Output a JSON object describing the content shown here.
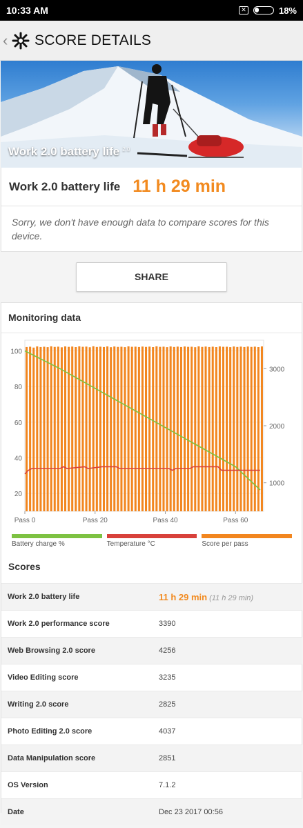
{
  "status_bar": {
    "time": "10:33 AM",
    "battery": "18%"
  },
  "app_bar": {
    "back_glyph": "‹",
    "title": "SCORE DETAILS"
  },
  "hero": {
    "caption": "Work 2.0 battery life",
    "version": "2.0"
  },
  "result": {
    "label": "Work 2.0 battery life",
    "value": "11 h 29 min"
  },
  "note": "Sorry, we don't have enough data to compare scores for this device.",
  "share_label": "SHARE",
  "monitoring": {
    "title": "Monitoring data",
    "legend": [
      {
        "label": "Battery charge %",
        "color": "#7dc242"
      },
      {
        "label": "Temperature °C",
        "color": "#d8413b"
      },
      {
        "label": "Score per pass",
        "color": "#f2861f"
      }
    ]
  },
  "chart_data": {
    "type": "bar",
    "x_ticks": [
      "Pass 0",
      "Pass 20",
      "Pass 40",
      "Pass 60"
    ],
    "left_axis": {
      "ticks": [
        "20",
        "40",
        "60",
        "80",
        "100"
      ],
      "range": [
        10,
        106
      ]
    },
    "right_axis": {
      "ticks": [
        "1000",
        "2000",
        "3000"
      ],
      "range": [
        500,
        3500
      ]
    },
    "x_range": [
      0,
      68
    ],
    "series": [
      {
        "name": "Score per pass",
        "axis": "right",
        "color": "#f2861f",
        "values": [
          3380,
          3385,
          3370,
          3390,
          3380,
          3385,
          3378,
          3392,
          3382,
          3386,
          3375,
          3390,
          3383,
          3388,
          3379,
          3391,
          3384,
          3387,
          3376,
          3393,
          3381,
          3386,
          3380,
          3390,
          3377,
          3389,
          3382,
          3385,
          3378,
          3391,
          3384,
          3386,
          3380,
          3388,
          3382,
          3387,
          3379,
          3392,
          3383,
          3386,
          3378,
          3390,
          3381,
          3387,
          3380,
          3389,
          3383,
          3385,
          3377,
          3391,
          3382,
          3388,
          3380,
          3386,
          3379,
          3390,
          3384,
          3385,
          3378,
          3389,
          3381,
          3387,
          3380,
          3388,
          3382,
          3386,
          3379,
          3390
        ]
      },
      {
        "name": "Battery charge %",
        "axis": "left",
        "color": "#7dc242",
        "points": [
          [
            0,
            100
          ],
          [
            10,
            90
          ],
          [
            20,
            79
          ],
          [
            30,
            68
          ],
          [
            40,
            57
          ],
          [
            50,
            46
          ],
          [
            60,
            35
          ],
          [
            67,
            22
          ]
        ]
      },
      {
        "name": "Temperature °C",
        "axis": "left",
        "color": "#d8413b",
        "points": [
          [
            0,
            31
          ],
          [
            1,
            33
          ],
          [
            2,
            34
          ],
          [
            10,
            34
          ],
          [
            11,
            35
          ],
          [
            12,
            34
          ],
          [
            17,
            35
          ],
          [
            18,
            34
          ],
          [
            22,
            35
          ],
          [
            26,
            35
          ],
          [
            27,
            34
          ],
          [
            41,
            34
          ],
          [
            42,
            33
          ],
          [
            43,
            34
          ],
          [
            47,
            34
          ],
          [
            48,
            35
          ],
          [
            55,
            35
          ],
          [
            56,
            33
          ],
          [
            57,
            33
          ],
          [
            67,
            33
          ]
        ]
      }
    ]
  },
  "scores": {
    "title": "Scores",
    "rows": [
      {
        "label": "Work 2.0 battery life",
        "value": "11 h 29 min",
        "extra": "(11 h 29 min)"
      },
      {
        "label": "Work 2.0 performance score",
        "value": "3390"
      },
      {
        "label": "Web Browsing 2.0 score",
        "value": "4256"
      },
      {
        "label": "Video Editing score",
        "value": "3235"
      },
      {
        "label": "Writing 2.0 score",
        "value": "2825"
      },
      {
        "label": "Photo Editing 2.0 score",
        "value": "4037"
      },
      {
        "label": "Data Manipulation score",
        "value": "2851"
      },
      {
        "label": "OS Version",
        "value": "7.1.2"
      },
      {
        "label": "Date",
        "value": "Dec 23 2017 00:56"
      }
    ]
  }
}
